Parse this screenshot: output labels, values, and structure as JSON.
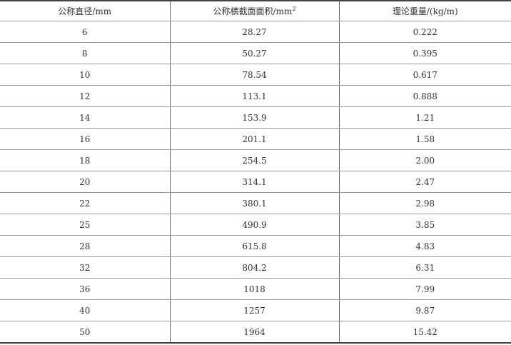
{
  "headers": [
    "公称直径/mm",
    "公称横截面面积/mm",
    "理论重量/(kg/m)"
  ],
  "header_sup": "2",
  "rows": [
    [
      "6",
      "28.27",
      "0.222"
    ],
    [
      "8",
      "50.27",
      "0.395"
    ],
    [
      "10",
      "78.54",
      "0.617"
    ],
    [
      "12",
      "113.1",
      "0.888"
    ],
    [
      "14",
      "153.9",
      "1.21"
    ],
    [
      "16",
      "201.1",
      "1.58"
    ],
    [
      "18",
      "254.5",
      "2.00"
    ],
    [
      "20",
      "314.1",
      "2.47"
    ],
    [
      "22",
      "380.1",
      "2.98"
    ],
    [
      "25",
      "490.9",
      "3.85"
    ],
    [
      "28",
      "615.8",
      "4.83"
    ],
    [
      "32",
      "804.2",
      "6.31"
    ],
    [
      "36",
      "1018",
      "7.99"
    ],
    [
      "40",
      "1257",
      "9.87"
    ],
    [
      "50",
      "1964",
      "15.42"
    ]
  ]
}
